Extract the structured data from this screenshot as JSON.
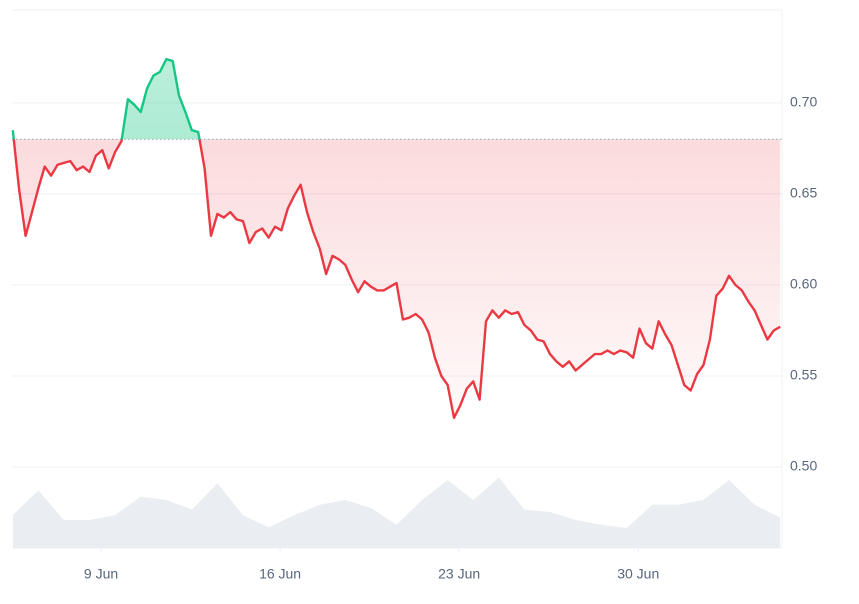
{
  "chart_data": {
    "type": "price-line",
    "x": [
      5.55,
      5.8,
      6.05,
      6.3,
      6.55,
      6.8,
      7.05,
      7.3,
      7.55,
      7.8,
      8.05,
      8.3,
      8.55,
      8.8,
      9.05,
      9.3,
      9.55,
      9.8,
      10.05,
      10.3,
      10.55,
      10.8,
      11.05,
      11.3,
      11.55,
      11.8,
      12.05,
      12.3,
      12.55,
      12.8,
      13.05,
      13.3,
      13.55,
      13.8,
      14.05,
      14.3,
      14.55,
      14.8,
      15.05,
      15.3,
      15.55,
      15.8,
      16.05,
      16.3,
      16.55,
      16.8,
      17.05,
      17.3,
      17.55,
      17.8,
      18.05,
      18.3,
      18.55,
      18.8,
      19.05,
      19.3,
      19.55,
      19.8,
      20.05,
      20.3,
      20.55,
      20.8,
      21.05,
      21.3,
      21.55,
      21.8,
      22.05,
      22.3,
      22.55,
      22.8,
      23.05,
      23.3,
      23.55,
      23.8,
      24.05,
      24.3,
      24.55,
      24.8,
      25.05,
      25.3,
      25.55,
      25.8,
      26.05,
      26.3,
      26.55,
      26.8,
      27.05,
      27.3,
      27.55,
      27.8,
      28.05,
      28.3,
      28.55,
      28.8,
      29.05,
      29.3,
      29.55,
      29.8,
      30.05,
      30.3,
      30.55,
      30.8,
      31.05,
      31.3,
      31.55,
      31.8,
      32.05,
      32.3,
      32.55,
      32.8,
      33.05,
      33.3,
      33.55,
      33.8,
      34.05,
      34.3,
      34.55,
      34.8,
      35.05,
      35.3,
      35.55
    ],
    "values": [
      0.685,
      0.652,
      0.627,
      0.64,
      0.653,
      0.665,
      0.66,
      0.666,
      0.667,
      0.668,
      0.663,
      0.665,
      0.662,
      0.671,
      0.674,
      0.664,
      0.673,
      0.679,
      0.702,
      0.699,
      0.695,
      0.708,
      0.715,
      0.717,
      0.724,
      0.723,
      0.704,
      0.695,
      0.685,
      0.684,
      0.664,
      0.627,
      0.639,
      0.637,
      0.64,
      0.636,
      0.635,
      0.623,
      0.629,
      0.631,
      0.626,
      0.632,
      0.63,
      0.642,
      0.649,
      0.655,
      0.64,
      0.629,
      0.62,
      0.606,
      0.616,
      0.614,
      0.611,
      0.603,
      0.596,
      0.602,
      0.599,
      0.597,
      0.597,
      0.599,
      0.601,
      0.581,
      0.582,
      0.584,
      0.581,
      0.574,
      0.56,
      0.55,
      0.545,
      0.527,
      0.534,
      0.543,
      0.547,
      0.537,
      0.58,
      0.586,
      0.582,
      0.586,
      0.584,
      0.585,
      0.578,
      0.575,
      0.57,
      0.569,
      0.562,
      0.558,
      0.555,
      0.558,
      0.553,
      0.556,
      0.559,
      0.562,
      0.562,
      0.564,
      0.562,
      0.564,
      0.563,
      0.56,
      0.576,
      0.568,
      0.565,
      0.58,
      0.573,
      0.567,
      0.556,
      0.545,
      0.542,
      0.551,
      0.556,
      0.57,
      0.594,
      0.598,
      0.605,
      0.6,
      0.597,
      0.591,
      0.586,
      0.578,
      0.57,
      0.575,
      0.577
    ],
    "baseline": 0.68,
    "up_color": "#16c784",
    "down_color": "#ea3943",
    "volume": {
      "x": [
        5.55,
        6.55,
        7.55,
        8.55,
        9.55,
        10.55,
        11.55,
        12.55,
        13.55,
        14.55,
        15.55,
        16.55,
        17.55,
        18.55,
        19.55,
        20.55,
        21.55,
        22.55,
        23.55,
        24.55,
        25.55,
        26.55,
        27.55,
        28.55,
        29.55,
        30.55,
        31.55,
        32.55,
        33.55,
        34.55,
        35.55
      ],
      "values": [
        41,
        72,
        35,
        35,
        41,
        64,
        60,
        48,
        81,
        41,
        26,
        41,
        54,
        60,
        50,
        29,
        60,
        85,
        60,
        88,
        48,
        45,
        35,
        29,
        25,
        54,
        54,
        60,
        85,
        54,
        38
      ],
      "color": "#eaedf1",
      "axis": "y2"
    },
    "xlim": [
      5.52,
      35.62
    ],
    "xticks": [
      {
        "value": 9,
        "label": "9 Jun"
      },
      {
        "value": 16,
        "label": "16 Jun"
      },
      {
        "value": 23,
        "label": "23 Jun"
      },
      {
        "value": 30,
        "label": "30 Jun"
      }
    ],
    "ylim": [
      0.4555,
      0.751
    ],
    "yticks": [
      {
        "value": 0.7,
        "label": "0.70"
      },
      0.65,
      {
        "value": 0.6,
        "label": "0.60"
      },
      0.55,
      {
        "value": 0.5,
        "label": "0.50"
      }
    ],
    "y2lim": [
      0,
      100
    ],
    "grid": true
  }
}
